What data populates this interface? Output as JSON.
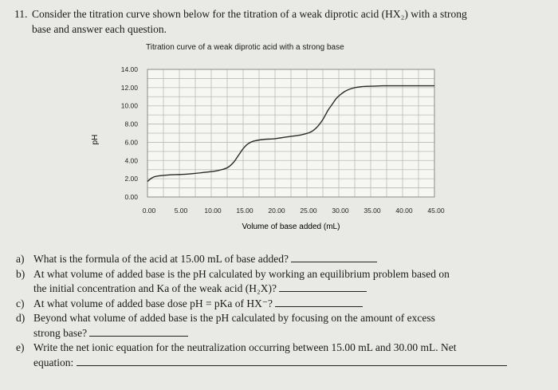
{
  "header": {
    "number": "11.",
    "line1": "Consider the titration curve shown below for the titration of a weak diprotic acid (HX₂) with a strong",
    "line2": "base and answer each question."
  },
  "chart_data": {
    "type": "line",
    "title": "Titration curve of a weak diprotic acid with a strong base",
    "xlabel": "Volume of base added (mL)",
    "ylabel": "pH",
    "xlim": [
      0,
      45
    ],
    "ylim": [
      0,
      14
    ],
    "grid": true,
    "x_ticks": [
      "0.00",
      "5.00",
      "10.00",
      "15.00",
      "20.00",
      "25.00",
      "30.00",
      "35.00",
      "40.00",
      "45.00"
    ],
    "y_ticks": [
      "0.00",
      "2.00",
      "4.00",
      "6.00",
      "8.00",
      "10.00",
      "12.00",
      "14.00"
    ],
    "series": [
      {
        "x": [
          0,
          1,
          3,
          6,
          9,
          11,
          12.5,
          13.5,
          14.3,
          15,
          15.7,
          16.5,
          18,
          20,
          22,
          24,
          25.5,
          26.5,
          27.5,
          28.3,
          29,
          29.6,
          30.2,
          31,
          32,
          33.5,
          35,
          37,
          40,
          45
        ],
        "y": [
          1.7,
          2.2,
          2.4,
          2.5,
          2.7,
          2.9,
          3.2,
          3.8,
          4.6,
          5.3,
          5.8,
          6.1,
          6.3,
          6.4,
          6.6,
          6.8,
          7.1,
          7.6,
          8.5,
          9.5,
          10.2,
          10.8,
          11.2,
          11.6,
          11.9,
          12.1,
          12.15,
          12.2,
          12.2,
          12.2
        ]
      }
    ]
  },
  "questions": [
    {
      "label": "a)",
      "lines": [
        "What is the formula of the acid at 15.00 mL of base added?"
      ]
    },
    {
      "label": "b)",
      "lines": [
        "At what volume of added base is the pH calculated by working an equilibrium problem based on",
        "the initial concentration and Ka of the weak acid (H₂X)?"
      ]
    },
    {
      "label": "c)",
      "lines": [
        "At what volume of added base dose pH = pKa of HX⁻?"
      ]
    },
    {
      "label": "d)",
      "lines": [
        "Beyond what volume of added base is the pH calculated by focusing on the amount of excess",
        "strong base?"
      ]
    },
    {
      "label": "e)",
      "lines": [
        "Write the net ionic equation for the neutralization occurring between 15.00 mL and 30.00 mL. Net",
        "equation:"
      ]
    }
  ]
}
